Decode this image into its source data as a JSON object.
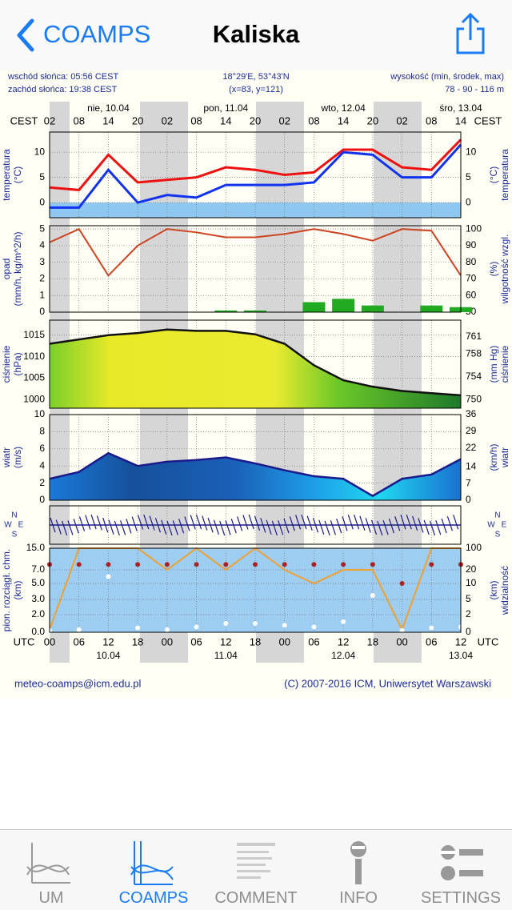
{
  "nav": {
    "back": "COAMPS",
    "title": "Kaliska"
  },
  "meteogram": {
    "sunrise": "wschód słońca: 05:56 CEST",
    "sunset": "zachód słońca: 19:38 CEST",
    "coords": "18°29'E, 53°43'N",
    "gridpoint": "(x=83, y=121)",
    "elevation_label": "wysokość (min, środek, max)",
    "elevation": "78 - 90 - 116 m",
    "days_top": [
      "nie, 10.04",
      "pon, 11.04",
      "wto, 12.04",
      "śro, 13.04"
    ],
    "days_bottom": [
      "10.04",
      "11.04",
      "12.04",
      "13.04"
    ],
    "cest_label": "CEST",
    "utc_label": "UTC",
    "cest_hours": [
      "02",
      "08",
      "14",
      "20",
      "02",
      "08",
      "14",
      "20",
      "02",
      "08",
      "14",
      "20",
      "02",
      "08",
      "14"
    ],
    "utc_hours": [
      "00",
      "06",
      "12",
      "18",
      "00",
      "06",
      "12",
      "18",
      "00",
      "06",
      "12",
      "18",
      "00",
      "06",
      "12"
    ],
    "panels": [
      {
        "type": "line",
        "left_title": [
          "temperatura",
          "(°C)"
        ],
        "right_title": [
          "(°C)",
          "temperatura"
        ],
        "ylim": [
          -3,
          14
        ],
        "yticks": [
          0,
          5,
          10
        ],
        "y2lim": [
          -3,
          14
        ],
        "y2ticks": [
          0,
          5,
          10
        ],
        "series": [
          {
            "type": "line",
            "color": "#ee1111",
            "values": [
              3,
              2.5,
              9.5,
              4,
              4.5,
              5,
              7,
              6.5,
              5.5,
              6,
              10.5,
              10.5,
              7,
              6.5,
              12.5
            ]
          },
          {
            "type": "line",
            "color": "#1133ee",
            "values": [
              -1,
              -1,
              6.5,
              0,
              1.5,
              1,
              3.5,
              3.5,
              3.5,
              4,
              10,
              9.5,
              5,
              5,
              11.5
            ]
          }
        ]
      },
      {
        "type": "bar_line",
        "left_title": [
          "opad",
          "(mm/h, kg/m^2/h)"
        ],
        "right_title": [
          "(%)",
          "wilgotność wzgl."
        ],
        "ylim": [
          0,
          5.2
        ],
        "yticks": [
          0,
          1,
          2,
          3,
          4,
          5
        ],
        "y2lim": [
          50,
          102
        ],
        "y2ticks": [
          50,
          60,
          70,
          80,
          90,
          100
        ],
        "series": [
          {
            "type": "bar",
            "color": "#22aa22",
            "values": [
              0,
              0,
              0,
              0,
              0,
              0,
              0.1,
              0.1,
              0,
              0.6,
              0.8,
              0.4,
              0,
              0.4,
              0.3
            ]
          },
          {
            "type": "line",
            "axis": "y2",
            "color": "#cc4422",
            "values": [
              92,
              100,
              72,
              90,
              100,
              98,
              95,
              95,
              97,
              100,
              97,
              93,
              100,
              99,
              72
            ]
          }
        ]
      },
      {
        "type": "area",
        "left_title": [
          "ciśnienie",
          "(hPa)"
        ],
        "right_title": [
          "(mm Hg)",
          "ciśnienie"
        ],
        "ylim": [
          998,
          1018.5
        ],
        "yticks": [
          1000,
          1005,
          1010,
          1015
        ],
        "y2lim": [
          748.5,
          763.9
        ],
        "y2ticks": [
          750,
          754,
          758,
          761
        ],
        "series": [
          {
            "type": "area",
            "color": "#111111",
            "values": [
              1013,
              1014,
              1015,
              1015.5,
              1016.3,
              1016,
              1016,
              1015.2,
              1013,
              1008,
              1004.5,
              1003,
              1002,
              1001.5,
              1001
            ]
          }
        ]
      },
      {
        "type": "area",
        "left_title": [
          "wiatr",
          "(m/s)"
        ],
        "right_title": [
          "(km/h)",
          "wiatr"
        ],
        "ylim": [
          0,
          10
        ],
        "yticks": [
          0,
          2,
          4,
          6,
          8,
          10
        ],
        "y2lim": [
          0,
          36
        ],
        "y2ticks": [
          0,
          7,
          14,
          22,
          29,
          36
        ],
        "series": [
          {
            "type": "area",
            "color": "#1a1a8c",
            "values": [
              2.5,
              3.3,
              5.5,
              4,
              4.5,
              4.7,
              5,
              4.3,
              3.5,
              2.8,
              2.5,
              0.5,
              2.5,
              3,
              4.8
            ]
          }
        ]
      },
      {
        "type": "direction",
        "compass": [
          "N",
          "S",
          "W",
          "E"
        ]
      },
      {
        "type": "scatter_line",
        "left_title": [
          "pion. rozciągł. chm.",
          "(km)"
        ],
        "right_title": [
          "(km)",
          "widzialność"
        ],
        "ylim": [
          0,
          15
        ],
        "yticks": [
          {
            "value": 0,
            "label": "0.0"
          },
          {
            "value": 2,
            "label": "2.0"
          },
          {
            "value": 3,
            "label": "3.0"
          },
          {
            "value": 5,
            "label": "5.0"
          },
          {
            "value": 7,
            "label": "7.0"
          },
          {
            "value": 15,
            "label": "15.0"
          }
        ],
        "y2lim": [
          0,
          100
        ],
        "y2ticks": [
          0,
          2,
          5,
          10,
          20,
          100
        ],
        "series": [
          {
            "type": "line",
            "axis": "y2",
            "color": "#f0a030",
            "values": [
              0.3,
              100,
              100,
              100,
              20,
              100,
              20,
              100,
              20,
              10,
              20,
              20,
              0.3,
              100,
              100
            ]
          },
          {
            "type": "dots",
            "color": "#aa2222",
            "values": [
              9,
              9,
              9,
              9,
              9,
              9,
              9,
              9,
              9,
              9,
              9,
              9,
              5,
              9,
              9
            ]
          },
          {
            "type": "dots",
            "color": "#ffffff",
            "values": [
              0.2,
              0.3,
              6,
              0.5,
              0.3,
              0.6,
              1,
              1,
              0.8,
              0.6,
              1.2,
              3.5,
              0.2,
              0.5,
              0.6
            ]
          }
        ]
      }
    ],
    "footer_left": "meteo-coamps@icm.edu.pl",
    "footer_right": "(C) 2007-2016 ICM, Uniwersytet Warszawski"
  },
  "tabs": [
    "UM",
    "COAMPS",
    "COMMENT",
    "INFO",
    "SETTINGS"
  ]
}
